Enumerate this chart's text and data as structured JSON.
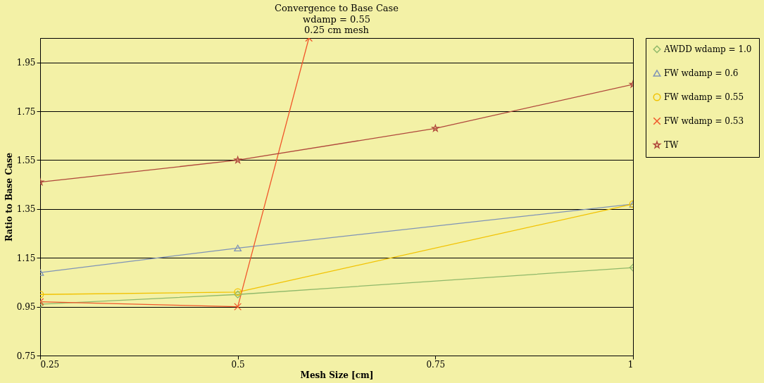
{
  "chart_data": {
    "type": "line",
    "title": "Convergence to Base Case",
    "subtitle": "wdamp = 0.55\n0.25 cm mesh",
    "xlabel": "Mesh Size [cm]",
    "ylabel": "Ratio to Base Case",
    "x": [
      0.25,
      0.5,
      1
    ],
    "xlim": [
      0.25,
      1
    ],
    "xticks": [
      0.25,
      0.5,
      0.75,
      1
    ],
    "ylim": [
      0.75,
      2.05
    ],
    "yticks": [
      0.75,
      0.95,
      1.15,
      1.35,
      1.55,
      1.75,
      1.95
    ],
    "grid": "y",
    "legend": "right",
    "series": [
      {
        "name": "AWDD wdamp = 1.0",
        "color": "#8fb86a",
        "marker": "diamond",
        "values": [
          0.96,
          1.0,
          1.11
        ]
      },
      {
        "name": "FW wdamp = 0.6",
        "color": "#7f93b7",
        "marker": "triangle",
        "values": [
          1.09,
          1.19,
          1.37
        ]
      },
      {
        "name": "FW wdamp = 0.55",
        "color": "#f2c200",
        "marker": "circle",
        "values": [
          1.0,
          1.01,
          1.37
        ]
      },
      {
        "name": "FW wdamp = 0.53",
        "color": "#f0562a",
        "marker": "cross",
        "x": [
          0.25,
          0.5,
          0.59
        ],
        "values": [
          0.97,
          0.95,
          2.05
        ]
      },
      {
        "name": "TW",
        "color": "#b0483c",
        "marker": "star",
        "x": [
          0.25,
          0.5,
          0.75,
          1
        ],
        "values": [
          1.46,
          1.55,
          1.68,
          1.86
        ]
      }
    ]
  }
}
